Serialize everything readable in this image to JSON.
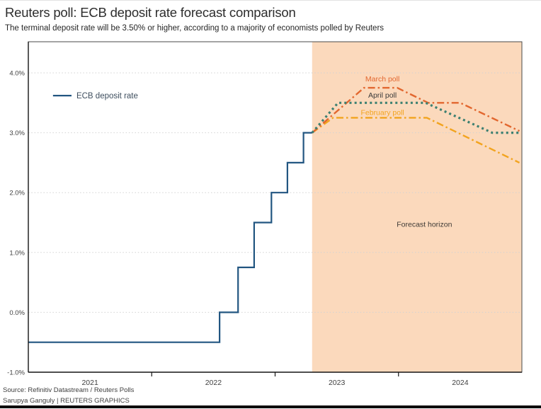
{
  "header": {
    "title": "Reuters poll: ECB deposit rate forecast comparison",
    "subtitle": "The terminal deposit rate will be 3.50% or higher, according to a majority of economists polled by Reuters"
  },
  "footer": {
    "source_line1": "Source: Refinitiv Datastream / Reuters Polls",
    "source_line2": "Sarupya Ganguly | REUTERS GRAPHICS"
  },
  "chart_data": {
    "type": "line",
    "title": "Reuters poll: ECB deposit rate forecast comparison",
    "x_axis": {
      "range": [
        2021.0,
        2025.0
      ],
      "tick_positions": [
        2022,
        2023,
        2024
      ],
      "category_label_positions": [
        2021.5,
        2022.5,
        2023.5,
        2024.5
      ],
      "category_labels": [
        "2021",
        "2022",
        "2023",
        "2024"
      ]
    },
    "y_axis": {
      "range": [
        -1.0,
        4.52
      ],
      "tick_values": [
        4,
        3,
        2,
        1,
        0,
        -1
      ],
      "tick_labels": [
        "4.0%",
        "3.0%",
        "2.0%",
        "1.0%",
        "0.0%",
        "-1.0%"
      ],
      "gridline_values": [
        4,
        3,
        2,
        1,
        0
      ],
      "unit": "percent"
    },
    "style": {
      "grid_color": "#d2d2d2",
      "border_color": "#4a4a4a",
      "axis_color": "#141414",
      "tick_label_color": "#3f3f3f"
    },
    "forecast_region": {
      "x_start": 2023.3,
      "x_end": 2025.0,
      "fill": "#fbd9bc",
      "label": "Forecast horizon",
      "label_x": 2024.21,
      "label_y": 1.47,
      "label_color": "#3d3935"
    },
    "legend": {
      "label": "ECB deposit rate",
      "x_line_start": 2021.2,
      "x_line_end": 2021.35,
      "x_text": 2021.39,
      "y": 3.62,
      "line_color": "#225681",
      "text_color": "#3e4e5e"
    },
    "series": [
      {
        "name": "February poll",
        "color": "#f2a41f",
        "dash": "dashdot",
        "width": 2.4,
        "points": [
          [
            2023.3,
            3.0
          ],
          [
            2023.47,
            3.25
          ],
          [
            2024.23,
            3.25
          ],
          [
            2024.98,
            2.5
          ]
        ]
      },
      {
        "name": "March poll",
        "color": "#e2672f",
        "dash": "dashdot",
        "width": 2.4,
        "points": [
          [
            2023.3,
            3.0
          ],
          [
            2023.72,
            3.75
          ],
          [
            2023.99,
            3.75
          ],
          [
            2024.24,
            3.5
          ],
          [
            2024.5,
            3.5
          ],
          [
            2024.98,
            3.03
          ]
        ]
      },
      {
        "name": "April poll",
        "color": "#3d8071",
        "dash": "dotted",
        "width": 3.2,
        "points": [
          [
            2023.3,
            3.0
          ],
          [
            2023.51,
            3.5
          ],
          [
            2024.22,
            3.5
          ],
          [
            2024.76,
            3.0
          ],
          [
            2024.98,
            3.0
          ]
        ]
      },
      {
        "name": "ECB deposit rate",
        "color": "#225681",
        "dash": "solid",
        "width": 2.2,
        "points": [
          [
            2021.0,
            -0.5
          ],
          [
            2022.55,
            -0.5
          ],
          [
            2022.55,
            0.0
          ],
          [
            2022.7,
            0.0
          ],
          [
            2022.7,
            0.75
          ],
          [
            2022.83,
            0.75
          ],
          [
            2022.83,
            1.5
          ],
          [
            2022.97,
            1.5
          ],
          [
            2022.97,
            2.0
          ],
          [
            2023.1,
            2.0
          ],
          [
            2023.1,
            2.5
          ],
          [
            2023.23,
            2.5
          ],
          [
            2023.23,
            3.0
          ],
          [
            2023.3,
            3.0
          ]
        ]
      }
    ],
    "annotations": [
      {
        "text": "March poll",
        "x": 2023.87,
        "y": 3.9,
        "color": "#e2672f"
      },
      {
        "text": "April poll",
        "x": 2023.87,
        "y": 3.63,
        "color": "#3a3a3a"
      },
      {
        "text": "February poll",
        "x": 2023.87,
        "y": 3.34,
        "color": "#f2a41f"
      }
    ]
  }
}
